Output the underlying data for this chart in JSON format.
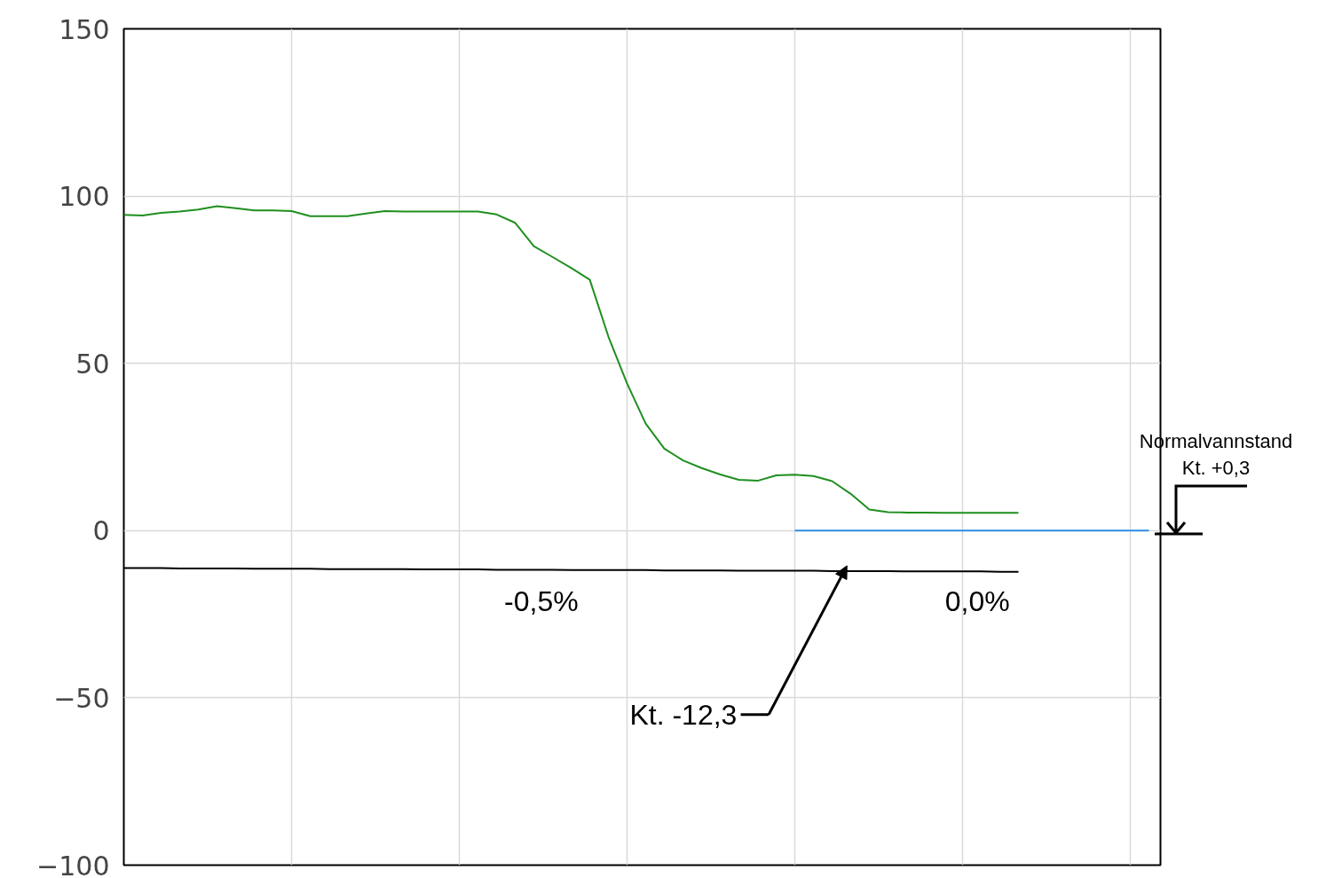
{
  "chart_data": {
    "type": "line",
    "categories": [
      null,
      null,
      null,
      null,
      null,
      null,
      null,
      null,
      null,
      null,
      null,
      null,
      null,
      null,
      null,
      null,
      null,
      null,
      null,
      null,
      null,
      null,
      null,
      null,
      null,
      null,
      null,
      null,
      null,
      null,
      null,
      null,
      null,
      null,
      null,
      null,
      null,
      null,
      null,
      null,
      null,
      null,
      null,
      null,
      null,
      null,
      null,
      null,
      null,
      null,
      null,
      null,
      null,
      null,
      null,
      null
    ],
    "ylim": [
      -100,
      150
    ],
    "yticks": [
      -100,
      -50,
      0,
      50,
      100,
      150
    ],
    "grid": true,
    "tick_labels": "y",
    "series": [
      {
        "color": "#1f8f1f",
        "values": [
          94.4,
          94.2,
          95,
          95.4,
          96,
          97,
          96.4,
          95.7,
          95.7,
          95.5,
          94,
          94,
          94,
          94.8,
          95.5,
          95.4,
          95.4,
          95.4,
          95.4,
          95.4,
          94.5,
          92,
          85,
          81.8,
          78.5,
          75,
          58,
          44,
          32,
          24.5,
          21,
          18.7,
          16.8,
          15.2,
          14.9,
          16.5,
          16.7,
          16.3,
          14.8,
          11,
          6.3,
          5.5,
          5.4,
          5.4,
          5.3,
          5.3,
          5.3,
          5.3,
          5.3,
          null,
          null,
          null,
          null,
          null,
          null,
          null
        ]
      },
      {
        "color": "#2e8ee8",
        "values": [
          null,
          null,
          null,
          null,
          null,
          null,
          null,
          null,
          null,
          null,
          null,
          null,
          null,
          null,
          null,
          null,
          null,
          null,
          null,
          null,
          null,
          null,
          null,
          null,
          null,
          null,
          null,
          null,
          null,
          null,
          null,
          null,
          null,
          null,
          null,
          null,
          0,
          0,
          0,
          0,
          0,
          0,
          0,
          0,
          0,
          0,
          0,
          0,
          0,
          0,
          0,
          0,
          0,
          0,
          0,
          0
        ]
      },
      {
        "color": "#000000",
        "values": [
          -11.2,
          -11.2,
          -11.2,
          -11.3,
          -11.3,
          -11.3,
          -11.3,
          -11.4,
          -11.4,
          -11.4,
          -11.4,
          -11.5,
          -11.5,
          -11.5,
          -11.5,
          -11.5,
          -11.6,
          -11.6,
          -11.6,
          -11.6,
          -11.7,
          -11.7,
          -11.7,
          -11.7,
          -11.8,
          -11.8,
          -11.8,
          -11.8,
          -11.8,
          -11.9,
          -11.9,
          -11.9,
          -11.9,
          -12,
          -12,
          -12,
          -12,
          -12,
          -12.1,
          -12.1,
          -12.1,
          -12.1,
          -12.2,
          -12.2,
          -12.2,
          -12.2,
          -12.2,
          -12.3,
          -12.3,
          null,
          null,
          null,
          null,
          null,
          null,
          null
        ]
      }
    ],
    "annotations": [
      "-0,5%",
      "0,0%",
      "Kt. -12,3",
      "Normalvannstand",
      "Kt. +0,3"
    ]
  }
}
